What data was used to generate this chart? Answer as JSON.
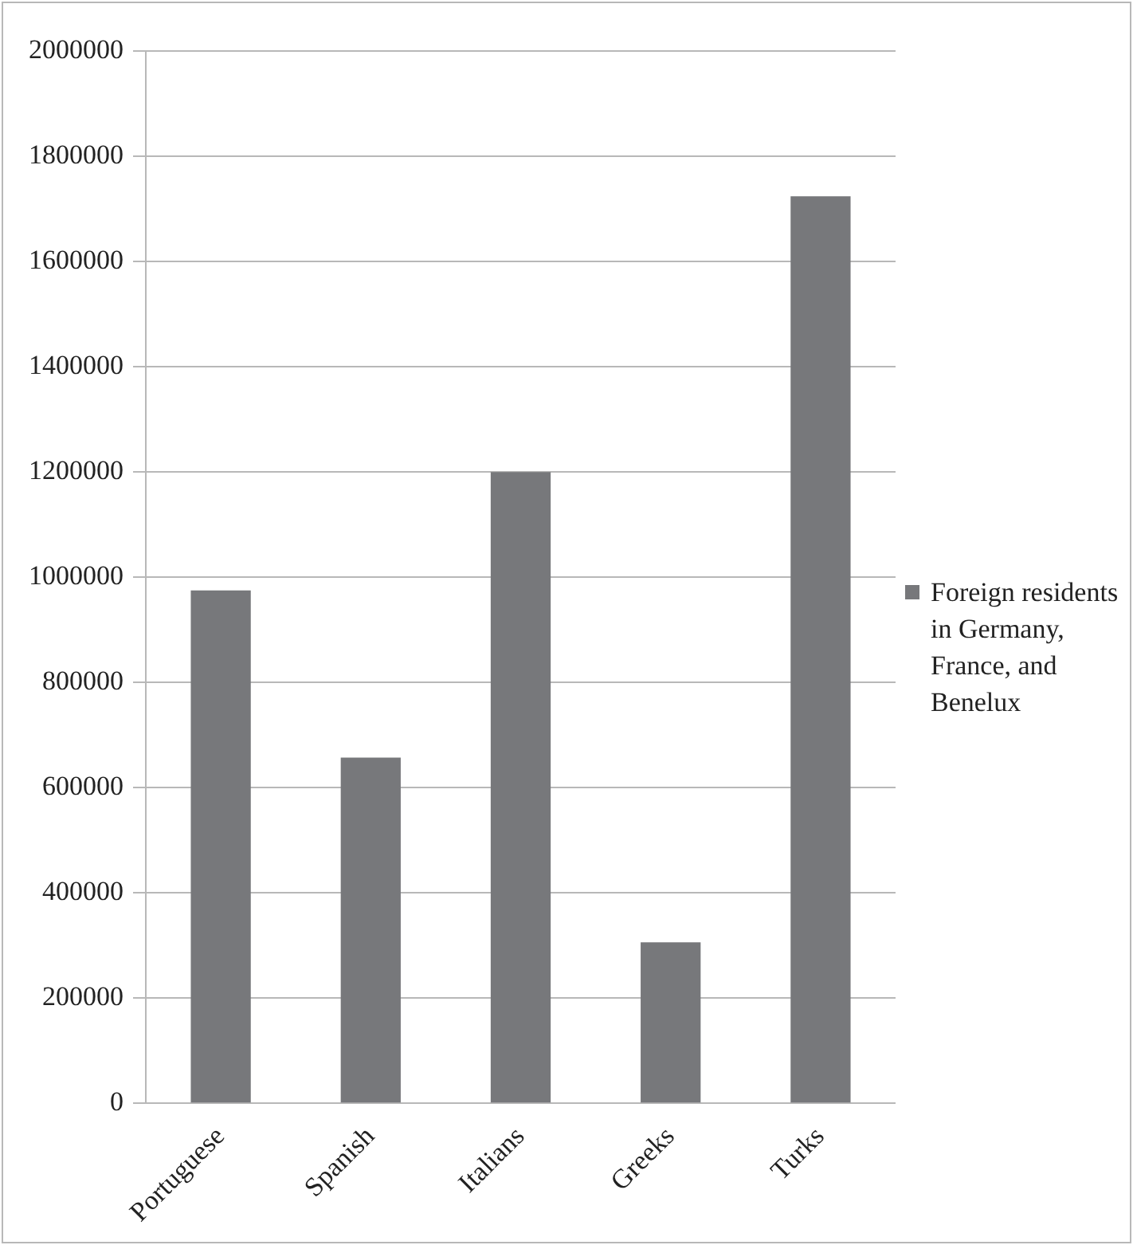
{
  "chart_data": {
    "type": "bar",
    "categories": [
      "Portuguese",
      "Spanish",
      "Italians",
      "Greeks",
      "Turks"
    ],
    "series": [
      {
        "name": "Foreign residents in Germany, France, and Benelux",
        "color": "#77787b",
        "values": [
          975000,
          657000,
          1200000,
          306000,
          1724000
        ]
      }
    ],
    "ylim": [
      0,
      2000000
    ],
    "yticks": [
      0,
      200000,
      400000,
      600000,
      800000,
      1000000,
      1200000,
      1400000,
      1600000,
      1800000,
      2000000
    ],
    "grid": "y",
    "legend": "right"
  }
}
